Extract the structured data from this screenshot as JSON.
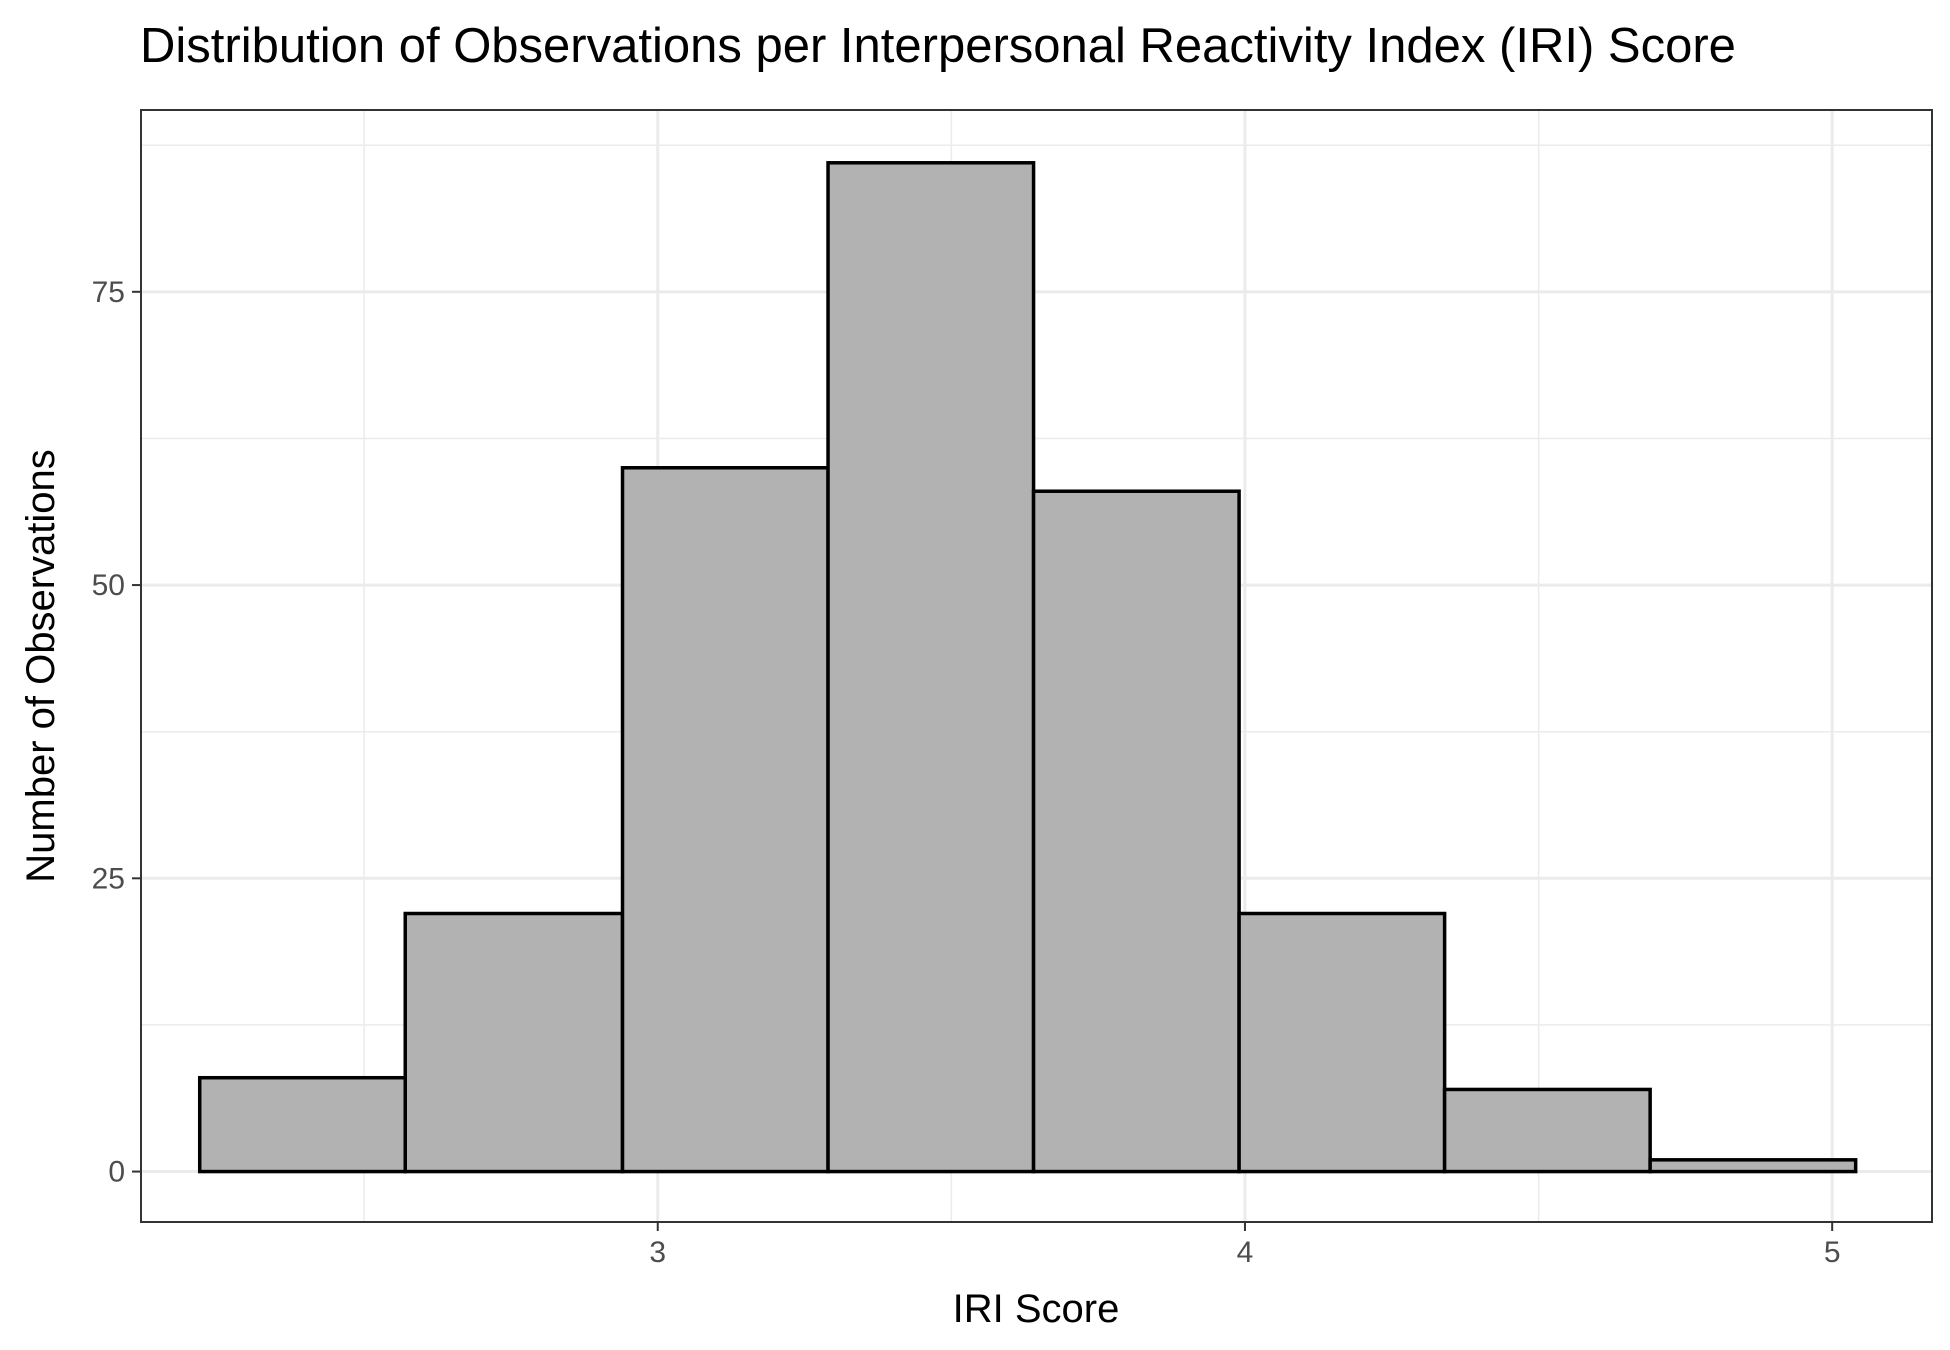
{
  "chart_data": {
    "type": "bar",
    "subtype": "histogram",
    "title": "Distribution of Observations per Interpersonal Reactivity Index (IRI) Score",
    "xlabel": "IRI Score",
    "ylabel": "Number of Observations",
    "bins": [
      {
        "x0": 2.22,
        "x1": 2.57,
        "count": 8
      },
      {
        "x0": 2.57,
        "x1": 2.94,
        "count": 22
      },
      {
        "x0": 2.94,
        "x1": 3.29,
        "count": 60
      },
      {
        "x0": 3.29,
        "x1": 3.64,
        "count": 86
      },
      {
        "x0": 3.64,
        "x1": 3.99,
        "count": 58
      },
      {
        "x0": 3.99,
        "x1": 4.34,
        "count": 22
      },
      {
        "x0": 4.34,
        "x1": 4.69,
        "count": 7
      },
      {
        "x0": 4.69,
        "x1": 5.04,
        "count": 1
      }
    ],
    "xlim": [
      2.12,
      5.17
    ],
    "ylim": [
      -4.3,
      90.5
    ],
    "x_ticks": [
      3,
      4,
      5
    ],
    "x_tick_labels": [
      "3",
      "4",
      "5"
    ],
    "y_ticks": [
      0,
      25,
      50,
      75
    ],
    "y_tick_labels": [
      "0",
      "25",
      "50",
      "75"
    ],
    "x_minor_ticks": [
      2.5,
      3.5,
      4.5
    ],
    "y_minor_ticks": [
      12.5,
      37.5,
      62.5,
      87.5
    ],
    "grid": true,
    "legend": "none",
    "colors": {
      "bar_fill": "#b2b2b2",
      "bar_stroke": "#000000",
      "grid": "#ebebeb",
      "panel_border": "#333333"
    }
  }
}
